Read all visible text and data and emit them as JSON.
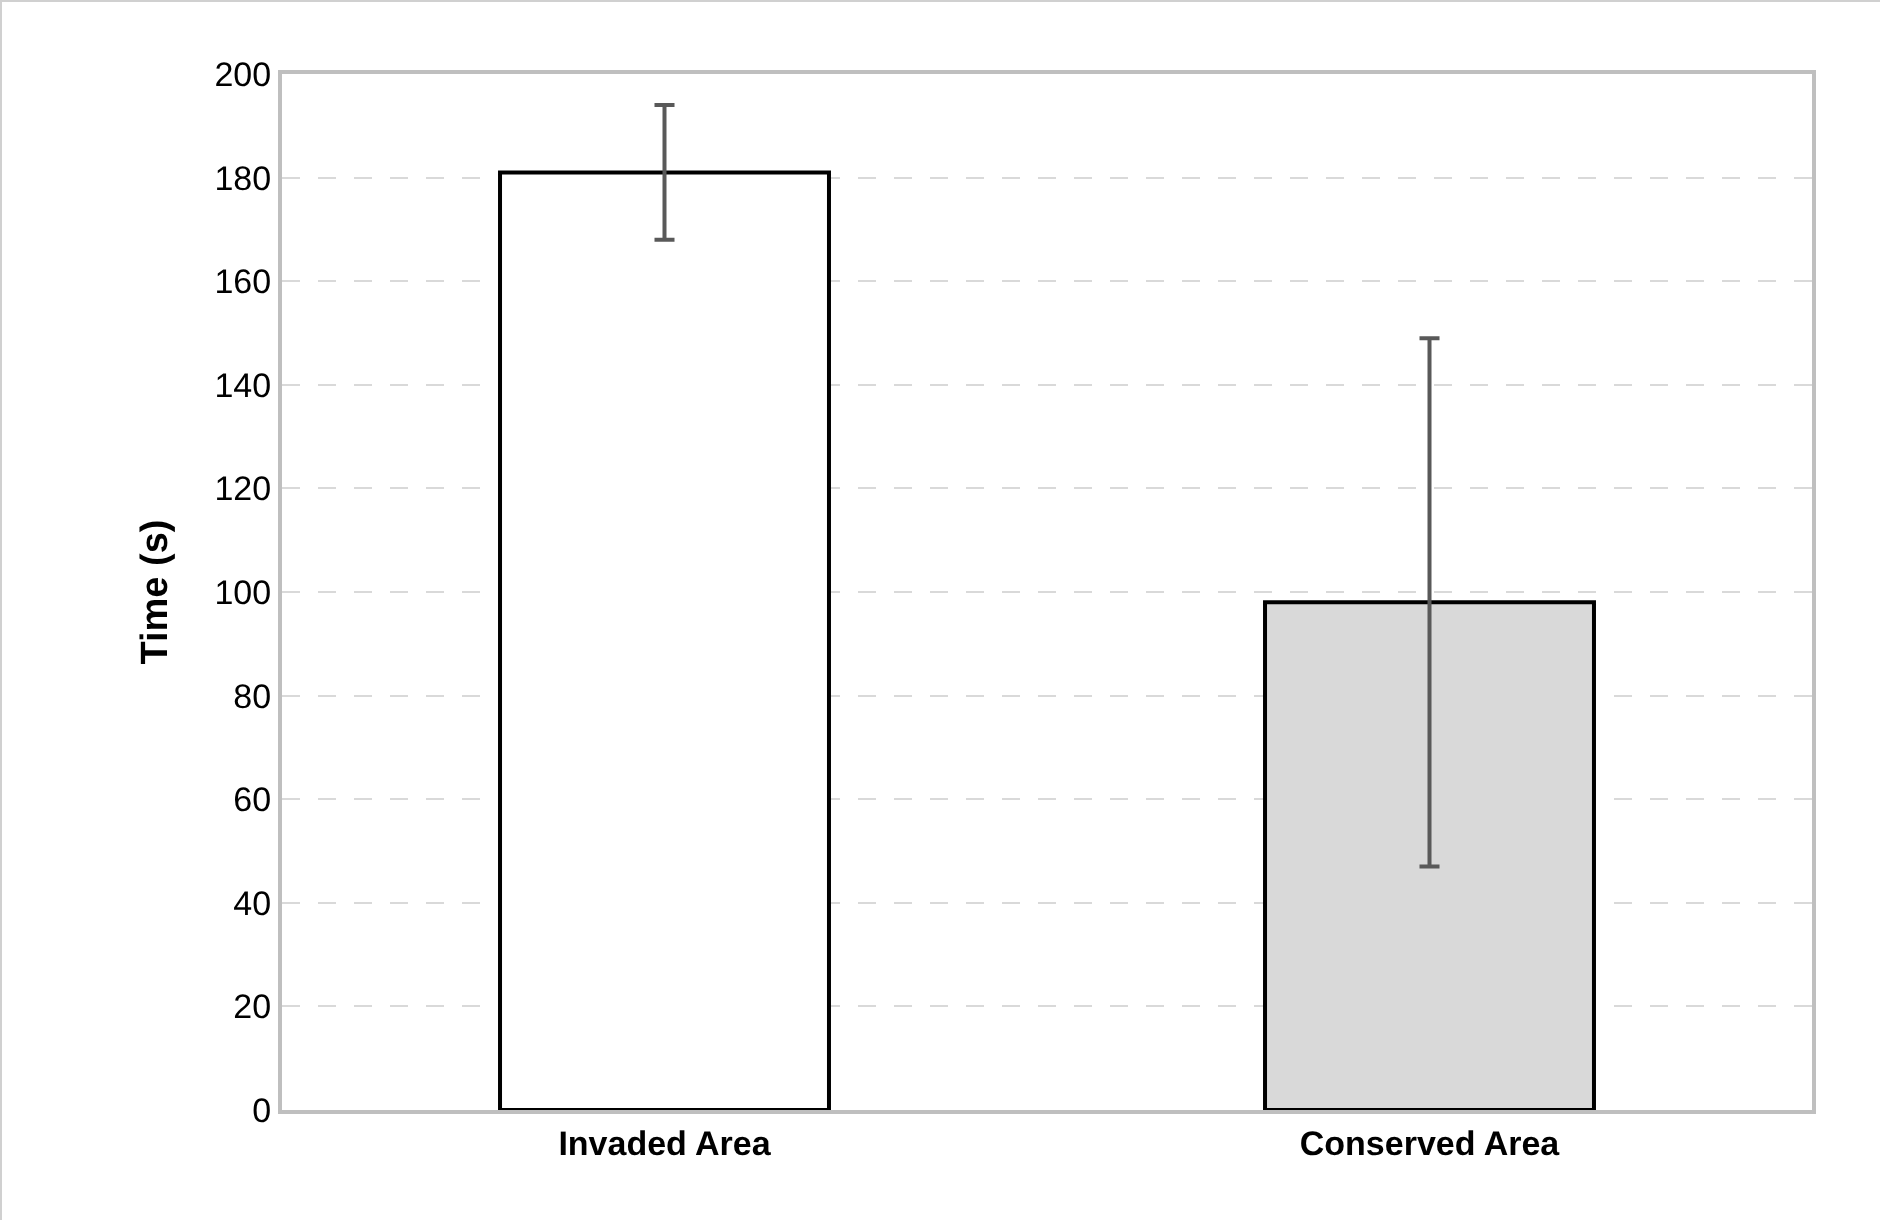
{
  "chart_data": {
    "type": "bar",
    "ylabel": "Time (s)",
    "categories": [
      "Invaded Area",
      "Conserved Area"
    ],
    "values": [
      181,
      98
    ],
    "colors": [
      "#ffffff",
      "#d9d9d9"
    ],
    "errors": [
      13,
      51
    ],
    "ylim": [
      0,
      200
    ],
    "yticks": [
      0,
      20,
      40,
      60,
      80,
      100,
      120,
      140,
      160,
      180,
      200
    ],
    "grid": "y"
  }
}
